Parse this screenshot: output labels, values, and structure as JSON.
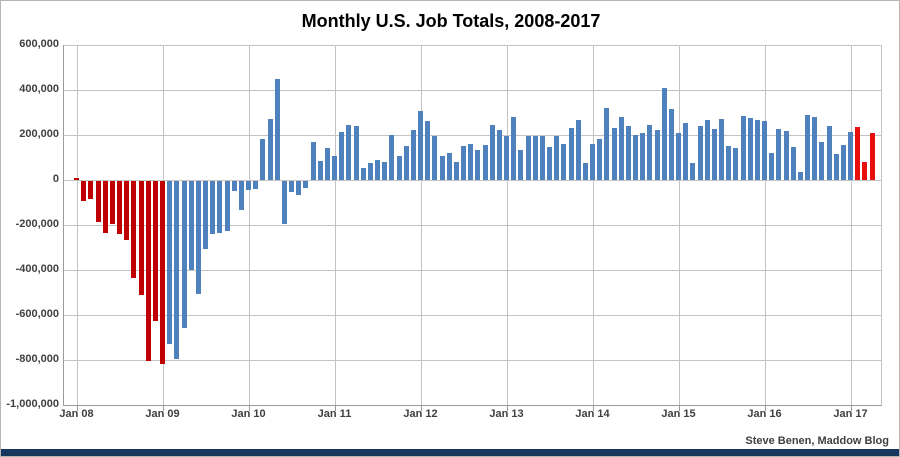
{
  "window": {
    "background": "#ffffff",
    "bottom_bar_color": "#17365d",
    "border_color": "#b5b5b5"
  },
  "chart_data": {
    "type": "bar",
    "title": "Monthly U.S. Job Totals, 2008-2017",
    "attribution": "Steve Benen, Maddow Blog",
    "unit": "net jobs added per month",
    "grid": "on",
    "legend": "none",
    "y_axis": {
      "min": -1000000,
      "max": 600000,
      "tick_step": 200000,
      "tick_labels": [
        "600,000",
        "400,000",
        "200,000",
        "0",
        "-200,000",
        "-400,000",
        "-600,000",
        "-800,000",
        "-1,000,000"
      ]
    },
    "x_axis": {
      "tick_labels": [
        "Jan 08",
        "Jan 09",
        "Jan 10",
        "Jan 11",
        "Jan 12",
        "Jan 13",
        "Jan 14",
        "Jan 15",
        "Jan 16",
        "Jan 17"
      ],
      "months_start": "2008-01",
      "months_end": "2017-04"
    },
    "colors": {
      "early_red": "#c00000",
      "blue": "#4f81bd",
      "late_red": "#e8100c"
    },
    "bar_color_rule": {
      "first_red_count": 13,
      "last_red_count": 3
    },
    "values_thousands": [
      10,
      -90,
      -80,
      -180,
      -230,
      -190,
      -235,
      -260,
      -430,
      -505,
      -800,
      -620,
      -815,
      -725,
      -790,
      -655,
      -395,
      -500,
      -300,
      -235,
      -230,
      -220,
      -45,
      -130,
      -40,
      -35,
      180,
      270,
      450,
      -190,
      -50,
      -60,
      -30,
      170,
      85,
      140,
      105,
      215,
      245,
      240,
      55,
      75,
      90,
      78,
      200,
      105,
      150,
      220,
      305,
      260,
      195,
      105,
      120,
      80,
      150,
      160,
      135,
      155,
      245,
      220,
      195,
      280,
      135,
      195,
      195,
      195,
      145,
      195,
      160,
      230,
      265,
      75,
      160,
      180,
      320,
      230,
      280,
      240,
      200,
      210,
      245,
      220,
      410,
      315,
      210,
      255,
      75,
      240,
      265,
      225,
      270,
      150,
      140,
      285,
      275,
      265,
      262,
      120,
      228,
      218,
      145,
      35,
      287,
      280,
      170,
      240,
      115,
      155,
      215,
      235,
      80,
      210
    ]
  }
}
